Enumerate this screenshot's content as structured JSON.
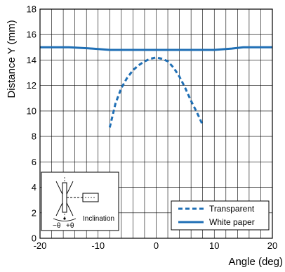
{
  "chart_data": {
    "type": "line",
    "xlabel": "Angle (deg)",
    "ylabel": "Distance Y (mm)",
    "xlim": [
      -20,
      20
    ],
    "ylim": [
      0,
      18
    ],
    "x_ticks": [
      -20,
      -10,
      0,
      10,
      20
    ],
    "y_ticks": [
      0,
      2,
      4,
      6,
      8,
      10,
      12,
      14,
      16,
      18
    ],
    "grid": true,
    "legend_position": "bottom-right",
    "series": [
      {
        "name": "Transparent",
        "style": "dashed",
        "color": "#1f6fb5",
        "x": [
          -8,
          -7,
          -6,
          -5,
          -4,
          -3,
          -2,
          -1,
          0,
          1,
          2,
          3,
          4,
          5,
          6,
          7,
          8
        ],
        "y": [
          8.7,
          10.6,
          11.8,
          12.6,
          13.2,
          13.6,
          13.9,
          14.1,
          14.2,
          14.1,
          13.9,
          13.4,
          12.7,
          11.8,
          10.8,
          9.9,
          8.9
        ]
      },
      {
        "name": "White paper",
        "style": "solid",
        "color": "#1f6fb5",
        "x": [
          -20,
          -15,
          -11,
          -8,
          -5,
          0,
          5,
          8,
          10,
          13,
          15,
          20
        ],
        "y": [
          15.0,
          15.0,
          14.9,
          14.8,
          14.8,
          14.8,
          14.8,
          14.8,
          14.8,
          14.9,
          15.0,
          15.0
        ]
      }
    ]
  },
  "inset": {
    "minus_theta": "−θ",
    "plus_theta": "+θ",
    "caption": "Inclination"
  }
}
